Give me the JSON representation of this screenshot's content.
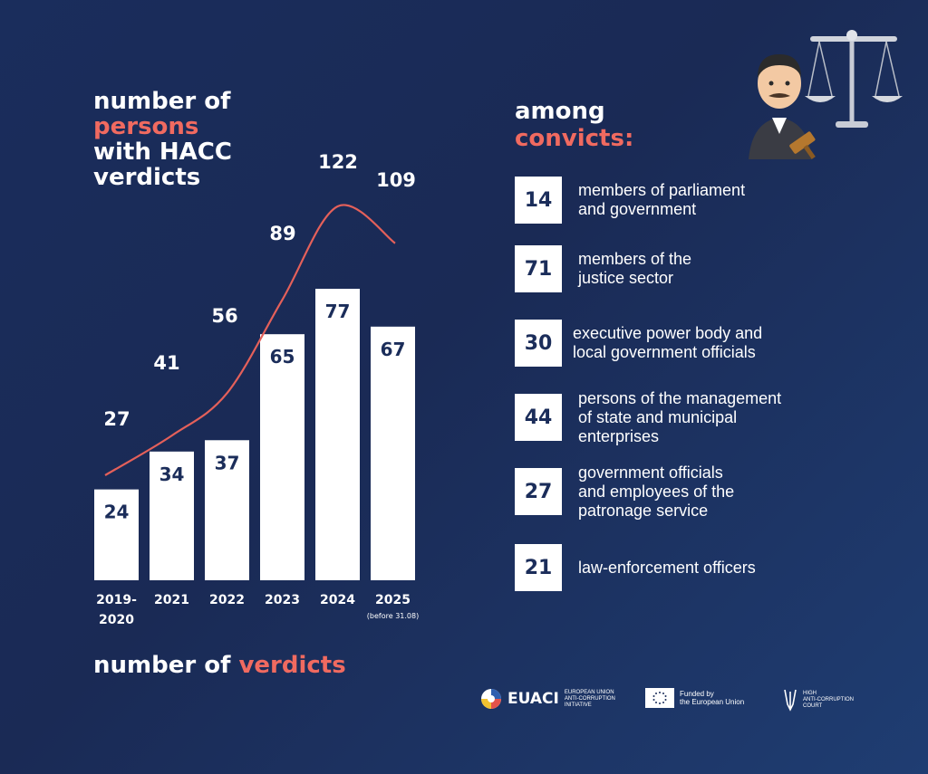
{
  "header": {
    "title_lines": [
      "number of",
      "persons",
      "with HACC",
      "verdicts"
    ],
    "among_line1": "among",
    "among_line2": "convicts:"
  },
  "footer_title": {
    "prefix": "number of ",
    "accent": "verdicts"
  },
  "chart_data": {
    "type": "bar",
    "categories": [
      "2019-2020",
      "2021",
      "2022",
      "2023",
      "2024",
      "2025"
    ],
    "category_notes": [
      "",
      "",
      "",
      "",
      "",
      "(before 31.08)"
    ],
    "series": [
      {
        "name": "number of verdicts",
        "type": "bar",
        "values": [
          24,
          34,
          37,
          65,
          77,
          67
        ]
      },
      {
        "name": "number of persons with HACC verdicts",
        "type": "line",
        "values": [
          27,
          41,
          56,
          89,
          122,
          109
        ]
      }
    ],
    "colors": {
      "bar": "#ffffff",
      "line": "#e4605a",
      "bar_label": "#1b2d5a"
    }
  },
  "convicts": [
    {
      "value": "14",
      "text": "members of parliament\nand government"
    },
    {
      "value": "71",
      "text": "members of the\njustice sector"
    },
    {
      "value": "30",
      "text": "executive power body and\nlocal government officials"
    },
    {
      "value": "44",
      "text": "persons of the management\nof state and municipal\nenterprises"
    },
    {
      "value": "27",
      "text": "government officials\nand employees of the\npatronage service"
    },
    {
      "value": "21",
      "text": "law-enforcement officers"
    }
  ],
  "logos": {
    "euaci": "EUACI",
    "euaci_sub": "EUROPEAN UNION\nANTI-CORRUPTION\nINITIATIVE",
    "eu_funded": "Funded by\nthe European Union",
    "hacc": "HIGH\nANTI-CORRUPTION\nCOURT"
  },
  "icons": [
    "judge-emoji-icon",
    "scales-icon"
  ],
  "colors": {
    "accent": "#f06a60",
    "background": "#1a2d5c"
  }
}
